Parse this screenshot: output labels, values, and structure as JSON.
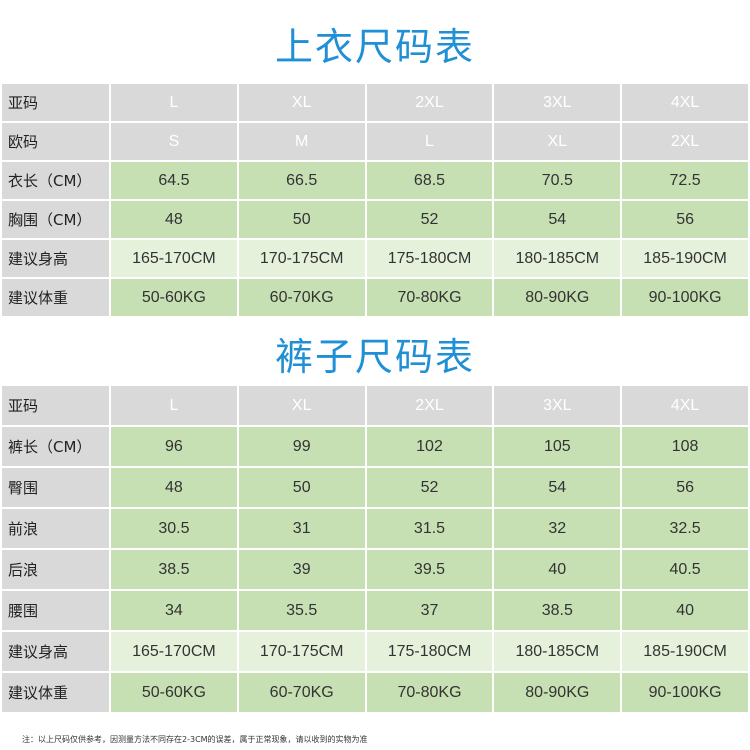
{
  "top": {
    "title": "上衣尺码表",
    "rows": [
      {
        "label": "亚码",
        "style": "gray",
        "values": [
          "L",
          "XL",
          "2XL",
          "3XL",
          "4XL"
        ]
      },
      {
        "label": "欧码",
        "style": "gray",
        "values": [
          "S",
          "M",
          "L",
          "XL",
          "2XL"
        ]
      },
      {
        "label": "衣长（CM）",
        "style": "green",
        "values": [
          "64.5",
          "66.5",
          "68.5",
          "70.5",
          "72.5"
        ]
      },
      {
        "label": "胸围（CM）",
        "style": "green",
        "values": [
          "48",
          "50",
          "52",
          "54",
          "56"
        ]
      },
      {
        "label": "建议身高",
        "style": "lgreen",
        "values": [
          "165-170CM",
          "170-175CM",
          "175-180CM",
          "180-185CM",
          "185-190CM"
        ]
      },
      {
        "label": "建议体重",
        "style": "green",
        "values": [
          "50-60KG",
          "60-70KG",
          "70-80KG",
          "80-90KG",
          "90-100KG"
        ]
      }
    ]
  },
  "bottom": {
    "title": "裤子尺码表",
    "rows": [
      {
        "label": "亚码",
        "style": "gray",
        "values": [
          "L",
          "XL",
          "2XL",
          "3XL",
          "4XL"
        ]
      },
      {
        "label": "裤长（CM）",
        "style": "green",
        "values": [
          "96",
          "99",
          "102",
          "105",
          "108"
        ]
      },
      {
        "label": "臀围",
        "style": "green",
        "values": [
          "48",
          "50",
          "52",
          "54",
          "56"
        ]
      },
      {
        "label": "前浪",
        "style": "green",
        "values": [
          "30.5",
          "31",
          "31.5",
          "32",
          "32.5"
        ]
      },
      {
        "label": "后浪",
        "style": "green",
        "values": [
          "38.5",
          "39",
          "39.5",
          "40",
          "40.5"
        ]
      },
      {
        "label": "腰围",
        "style": "green",
        "values": [
          "34",
          "35.5",
          "37",
          "38.5",
          "40"
        ]
      },
      {
        "label": "建议身高",
        "style": "lgreen",
        "values": [
          "165-170CM",
          "170-175CM",
          "175-180CM",
          "180-185CM",
          "185-190CM"
        ]
      },
      {
        "label": "建议体重",
        "style": "green",
        "values": [
          "50-60KG",
          "60-70KG",
          "70-80KG",
          "80-90KG",
          "90-100KG"
        ]
      }
    ]
  },
  "note": "注：以上尺码仅供参考，因测量方法不同存在2-3CM的误差，属于正常现象，请以收到的实物为准",
  "colors": {
    "title": "#1f8fd6",
    "gray": "#d9d9d9",
    "green": "#c6e0b4",
    "light_green": "#e6f1dc"
  }
}
